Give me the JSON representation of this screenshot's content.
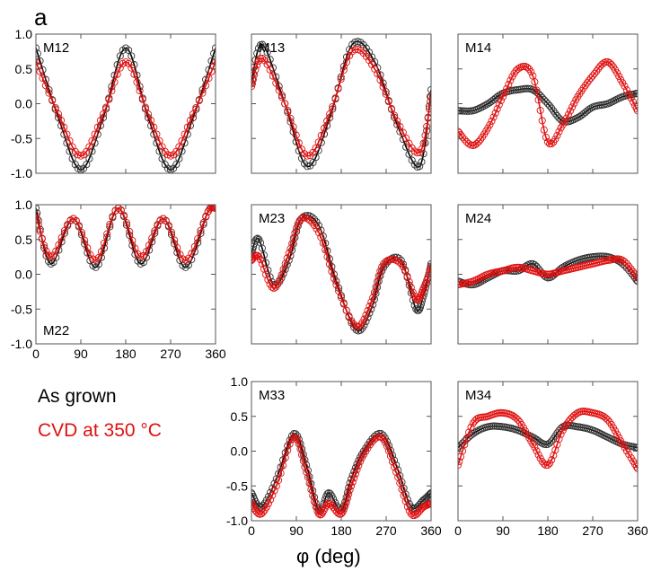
{
  "figure": {
    "panel_letter": "a",
    "xlabel": "φ (deg)",
    "legend": [
      {
        "label": "As grown",
        "color": "#000000"
      },
      {
        "label": "CVD at 350 °C",
        "color": "#e01010"
      }
    ]
  },
  "chart_data": {
    "type": "line",
    "x_range": [
      0,
      360
    ],
    "y_range": [
      -1.0,
      1.0
    ],
    "x_ticks": [
      "0",
      "90",
      "180",
      "270",
      "360"
    ],
    "y_ticks": [
      "1.0",
      "0.5",
      "0.0",
      "-0.5",
      "-1.0"
    ],
    "colors": {
      "as_grown": "#000000",
      "cvd": "#e01010"
    },
    "panels": [
      {
        "name": "M12",
        "x": [
          0,
          45,
          90,
          135,
          180,
          225,
          270,
          315,
          360
        ],
        "series": [
          {
            "name": "As grown",
            "values": [
              0.8,
              -0.2,
              -0.95,
              -0.2,
              0.8,
              -0.2,
              -0.95,
              -0.2,
              0.8
            ]
          },
          {
            "name": "CVD at 350 °C",
            "values": [
              0.6,
              -0.15,
              -0.75,
              -0.15,
              0.6,
              -0.15,
              -0.75,
              -0.15,
              0.6
            ]
          }
        ]
      },
      {
        "name": "M13",
        "x": [
          0,
          22,
          67,
          112,
          157,
          202,
          247,
          292,
          337,
          360
        ],
        "series": [
          {
            "name": "As grown",
            "values": [
              0.3,
              0.85,
              0.0,
              -0.9,
              -0.2,
              0.85,
              0.6,
              -0.3,
              -0.9,
              0.2
            ]
          },
          {
            "name": "CVD at 350 °C",
            "values": [
              0.25,
              0.65,
              0.0,
              -0.75,
              -0.15,
              0.75,
              0.5,
              -0.25,
              -0.7,
              0.1
            ]
          }
        ]
      },
      {
        "name": "M14",
        "x": [
          0,
          30,
          60,
          90,
          120,
          150,
          180,
          210,
          240,
          270,
          300,
          330,
          360
        ],
        "series": [
          {
            "name": "As grown",
            "values": [
              -0.1,
              -0.1,
              0.0,
              0.15,
              0.2,
              0.2,
              0.0,
              -0.25,
              -0.2,
              -0.05,
              0.0,
              0.1,
              0.15
            ]
          },
          {
            "name": "CVD at 350 °C",
            "values": [
              -0.4,
              -0.6,
              -0.35,
              0.1,
              0.5,
              0.4,
              -0.55,
              -0.3,
              0.1,
              0.4,
              0.6,
              0.3,
              -0.1
            ]
          }
        ]
      },
      {
        "name": "M22",
        "x": [
          0,
          30,
          75,
          120,
          165,
          210,
          255,
          300,
          345,
          360
        ],
        "series": [
          {
            "name": "As grown",
            "values": [
              0.95,
              0.15,
              0.8,
              0.1,
              0.95,
              0.15,
              0.8,
              0.1,
              0.9,
              0.95
            ]
          },
          {
            "name": "CVD at 350 °C",
            "values": [
              0.85,
              0.25,
              0.8,
              0.2,
              0.95,
              0.25,
              0.8,
              0.2,
              0.9,
              0.95
            ]
          }
        ]
      },
      {
        "name": "M23",
        "x": [
          0,
          15,
          45,
          75,
          100,
          135,
          170,
          210,
          240,
          265,
          300,
          330,
          345,
          360
        ],
        "series": [
          {
            "name": "As grown",
            "values": [
              0.3,
              0.5,
              -0.15,
              0.2,
              0.8,
              0.7,
              -0.1,
              -0.8,
              -0.5,
              0.1,
              0.2,
              -0.5,
              -0.3,
              0.15
            ]
          },
          {
            "name": "CVD at 350 °C",
            "values": [
              0.2,
              0.25,
              -0.2,
              0.3,
              0.8,
              0.6,
              -0.15,
              -0.75,
              -0.4,
              0.15,
              0.15,
              -0.35,
              -0.2,
              0.1
            ]
          }
        ]
      },
      {
        "name": "M24",
        "x": [
          0,
          30,
          60,
          90,
          120,
          150,
          180,
          210,
          240,
          270,
          300,
          330,
          360
        ],
        "series": [
          {
            "name": "As grown",
            "values": [
              -0.1,
              -0.15,
              -0.05,
              0.05,
              0.05,
              0.15,
              -0.05,
              0.1,
              0.2,
              0.25,
              0.25,
              0.15,
              -0.1
            ]
          },
          {
            "name": "CVD at 350 °C",
            "values": [
              -0.15,
              -0.1,
              0.0,
              0.05,
              0.1,
              0.05,
              0.0,
              0.05,
              0.1,
              0.15,
              0.2,
              0.2,
              -0.05
            ]
          }
        ]
      },
      {
        "name": "M33",
        "x": [
          0,
          20,
          50,
          85,
          110,
          135,
          155,
          180,
          200,
          225,
          260,
          290,
          320,
          345,
          360
        ],
        "series": [
          {
            "name": "As grown",
            "values": [
              -0.6,
              -0.8,
              -0.4,
              0.25,
              -0.2,
              -0.85,
              -0.6,
              -0.85,
              -0.4,
              0.0,
              0.25,
              -0.2,
              -0.8,
              -0.7,
              -0.6
            ]
          },
          {
            "name": "CVD at 350 °C",
            "values": [
              -0.75,
              -0.9,
              -0.5,
              0.2,
              -0.3,
              -0.9,
              -0.75,
              -0.9,
              -0.5,
              -0.05,
              0.2,
              -0.3,
              -0.9,
              -0.8,
              -0.75
            ]
          }
        ]
      },
      {
        "name": "M34",
        "x": [
          0,
          30,
          60,
          90,
          120,
          150,
          180,
          210,
          240,
          270,
          300,
          330,
          360
        ],
        "series": [
          {
            "name": "As grown",
            "values": [
              0.05,
              0.25,
              0.35,
              0.35,
              0.3,
              0.2,
              0.1,
              0.35,
              0.35,
              0.3,
              0.2,
              0.1,
              0.05
            ]
          },
          {
            "name": "CVD at 350 °C",
            "values": [
              -0.2,
              0.4,
              0.5,
              0.55,
              0.45,
              0.1,
              -0.2,
              0.3,
              0.55,
              0.55,
              0.45,
              0.1,
              -0.25
            ]
          }
        ]
      }
    ]
  }
}
